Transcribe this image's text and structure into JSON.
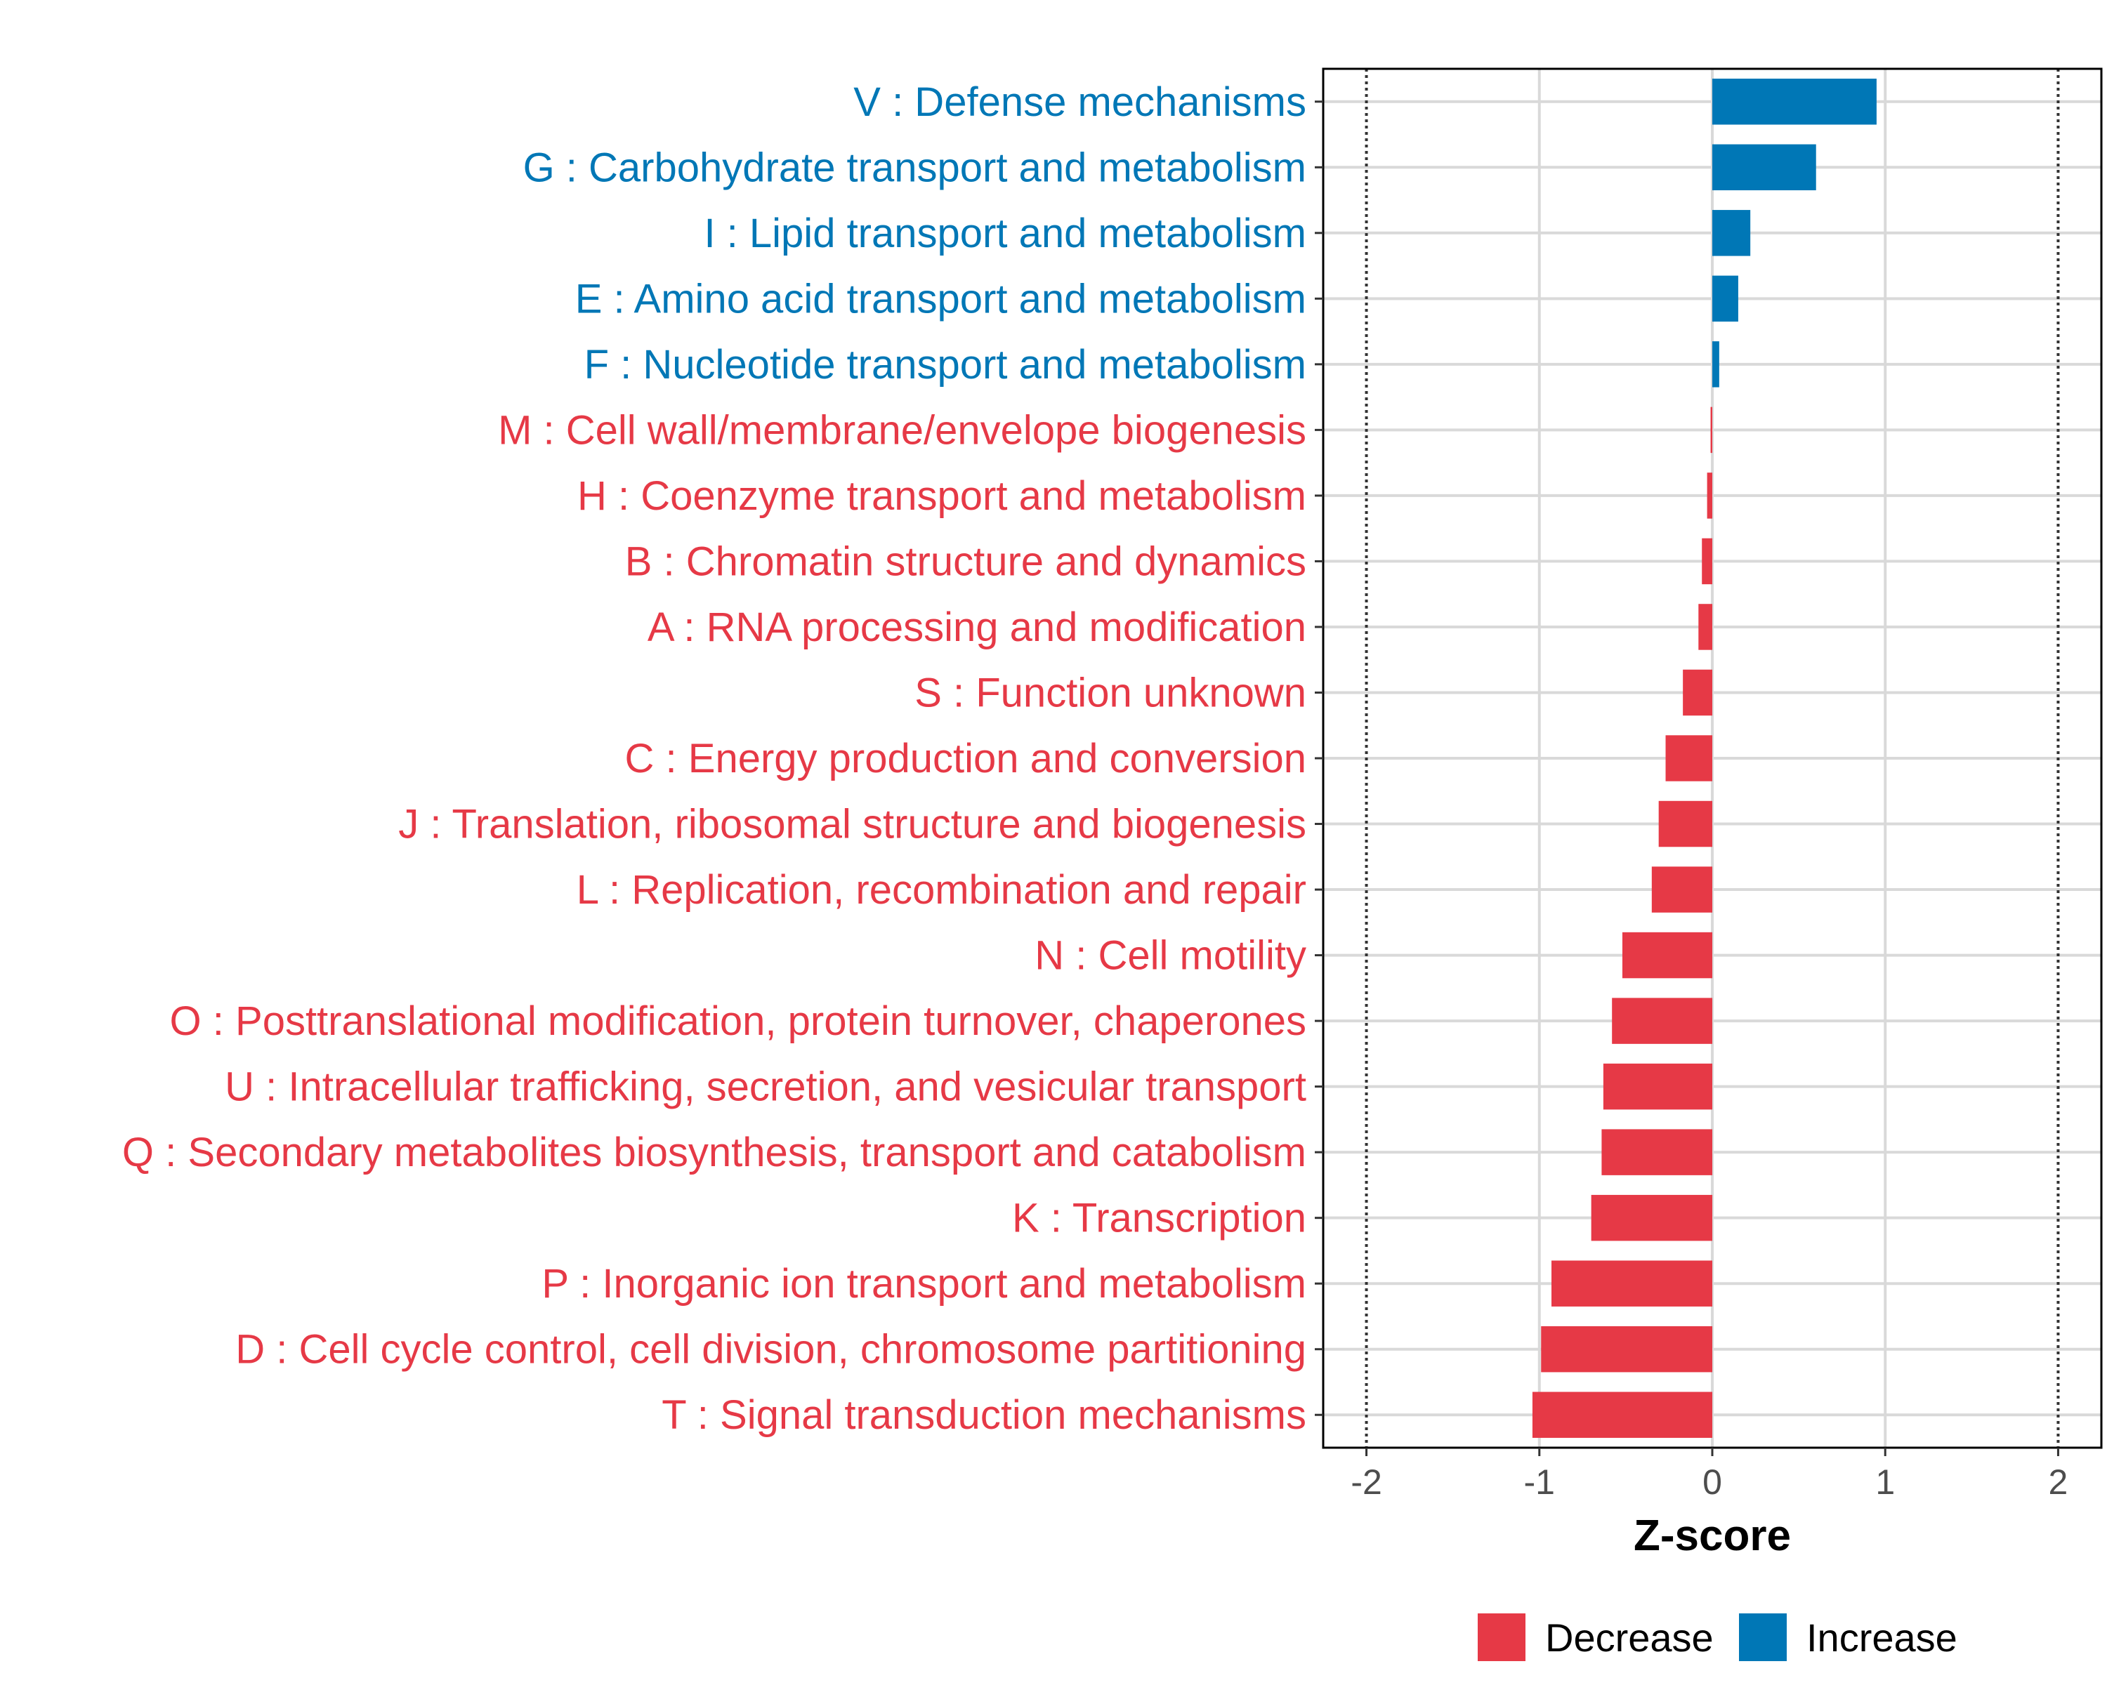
{
  "chart_data": {
    "type": "bar",
    "orientation": "horizontal",
    "xlabel": "Z-score",
    "xlim": [
      -2.25,
      2.25
    ],
    "xticks": [
      -2,
      -1,
      0,
      1,
      2
    ],
    "xtick_labels": [
      "-2",
      "-1",
      "0",
      "1",
      "2"
    ],
    "reference_lines": [
      -2,
      2
    ],
    "grid": true,
    "legend": {
      "position": "bottom",
      "entries": [
        {
          "label": "Decrease",
          "color": "#E63946"
        },
        {
          "label": "Increase",
          "color": "#0077B6"
        }
      ]
    },
    "categories": [
      {
        "label": "V : Defense mechanisms",
        "value": 0.95,
        "direction": "Increase"
      },
      {
        "label": "G : Carbohydrate transport and metabolism",
        "value": 0.6,
        "direction": "Increase"
      },
      {
        "label": "I : Lipid transport and metabolism",
        "value": 0.22,
        "direction": "Increase"
      },
      {
        "label": "E : Amino acid transport and metabolism",
        "value": 0.15,
        "direction": "Increase"
      },
      {
        "label": "F : Nucleotide transport and metabolism",
        "value": 0.04,
        "direction": "Increase"
      },
      {
        "label": "M : Cell wall/membrane/envelope biogenesis",
        "value": -0.01,
        "direction": "Decrease"
      },
      {
        "label": "H : Coenzyme transport and metabolism",
        "value": -0.03,
        "direction": "Decrease"
      },
      {
        "label": "B : Chromatin structure and dynamics",
        "value": -0.06,
        "direction": "Decrease"
      },
      {
        "label": "A : RNA processing and modification",
        "value": -0.08,
        "direction": "Decrease"
      },
      {
        "label": "S : Function unknown",
        "value": -0.17,
        "direction": "Decrease"
      },
      {
        "label": "C : Energy production and conversion",
        "value": -0.27,
        "direction": "Decrease"
      },
      {
        "label": "J : Translation, ribosomal structure and biogenesis",
        "value": -0.31,
        "direction": "Decrease"
      },
      {
        "label": "L : Replication, recombination and repair",
        "value": -0.35,
        "direction": "Decrease"
      },
      {
        "label": "N : Cell motility",
        "value": -0.52,
        "direction": "Decrease"
      },
      {
        "label": "O : Posttranslational modification, protein turnover, chaperones",
        "value": -0.58,
        "direction": "Decrease"
      },
      {
        "label": "U : Intracellular trafficking, secretion, and vesicular transport",
        "value": -0.63,
        "direction": "Decrease"
      },
      {
        "label": "Q : Secondary metabolites biosynthesis, transport and catabolism",
        "value": -0.64,
        "direction": "Decrease"
      },
      {
        "label": "K : Transcription",
        "value": -0.7,
        "direction": "Decrease"
      },
      {
        "label": "P : Inorganic ion transport and metabolism",
        "value": -0.93,
        "direction": "Decrease"
      },
      {
        "label": "D : Cell cycle control, cell division, chromosome partitioning",
        "value": -0.99,
        "direction": "Decrease"
      },
      {
        "label": "T : Signal transduction mechanisms",
        "value": -1.04,
        "direction": "Decrease"
      }
    ]
  }
}
